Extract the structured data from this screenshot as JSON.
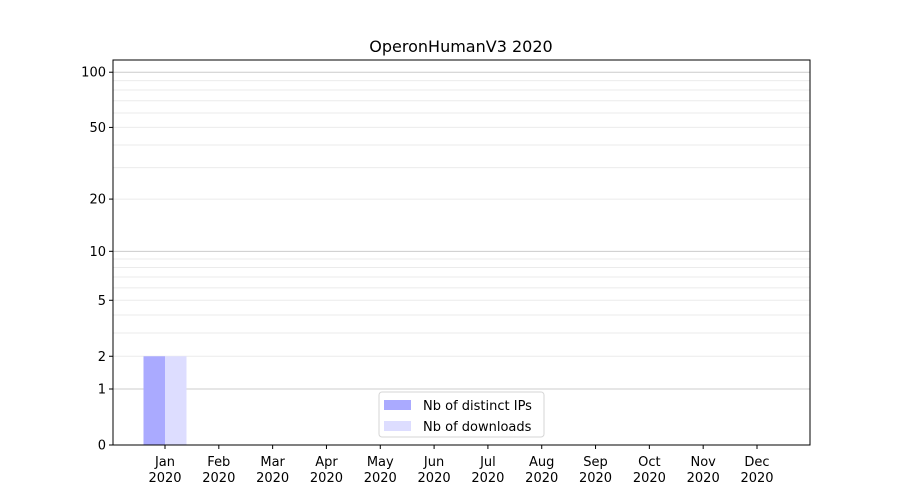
{
  "chart_data": {
    "type": "bar",
    "title": "OperonHumanV3 2020",
    "xlabel": "",
    "ylabel": "",
    "yscale": "log10(1+y)",
    "ylim": [
      0,
      116.5
    ],
    "yticks": [
      0,
      1,
      2,
      5,
      10,
      20,
      50,
      100
    ],
    "grid": true,
    "legend_position": "bottom-center",
    "categories": [
      "Jan\n2020",
      "Feb\n2020",
      "Mar\n2020",
      "Apr\n2020",
      "May\n2020",
      "Jun\n2020",
      "Jul\n2020",
      "Aug\n2020",
      "Sep\n2020",
      "Oct\n2020",
      "Nov\n2020",
      "Dec\n2020"
    ],
    "series": [
      {
        "name": "Nb of distinct IPs",
        "color": "#aaaaff",
        "values": [
          2,
          0,
          0,
          0,
          0,
          0,
          0,
          0,
          0,
          0,
          0,
          0
        ]
      },
      {
        "name": "Nb of downloads",
        "color": "#ddddff",
        "values": [
          2,
          0,
          0,
          0,
          0,
          0,
          0,
          0,
          0,
          0,
          0,
          0
        ]
      }
    ]
  }
}
